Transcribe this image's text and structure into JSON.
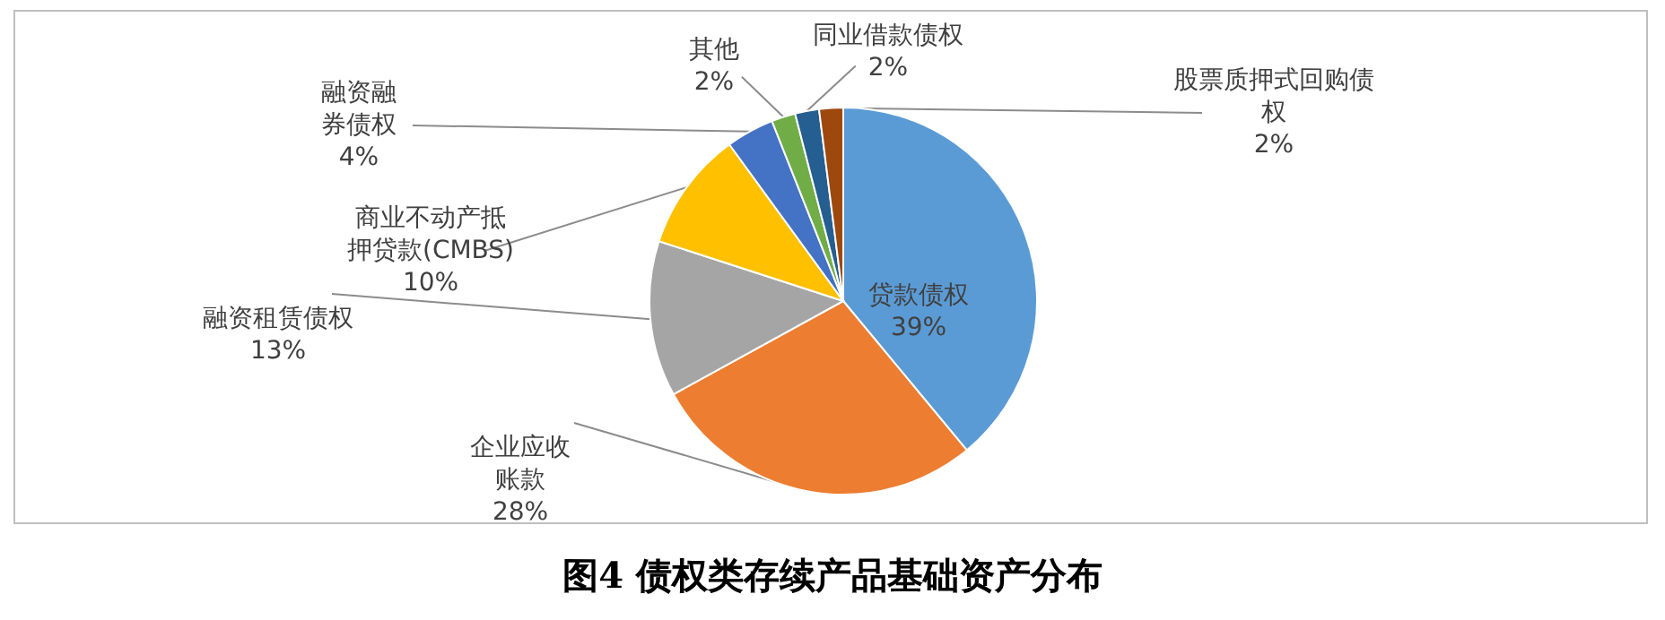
{
  "chart_data": {
    "type": "pie",
    "title": "图4 债权类存续产品基础资产分布",
    "categories": [
      "贷款债权",
      "企业应收账款",
      "融资租赁债权",
      "商业不动产抵押贷款(CMBS)",
      "融资融券债权",
      "其他",
      "同业借款债权",
      "股票质押式回购债权"
    ],
    "values": [
      39,
      28,
      13,
      10,
      4,
      2,
      2,
      2
    ],
    "colors": [
      "#5b9bd5",
      "#ed7d31",
      "#a5a5a5",
      "#ffc000",
      "#4472c4",
      "#70ad47",
      "#255e91",
      "#9e480e"
    ],
    "value_labels": [
      "39%",
      "28%",
      "13%",
      "10%",
      "4%",
      "2%",
      "2%",
      "2%"
    ],
    "legend": false
  }
}
